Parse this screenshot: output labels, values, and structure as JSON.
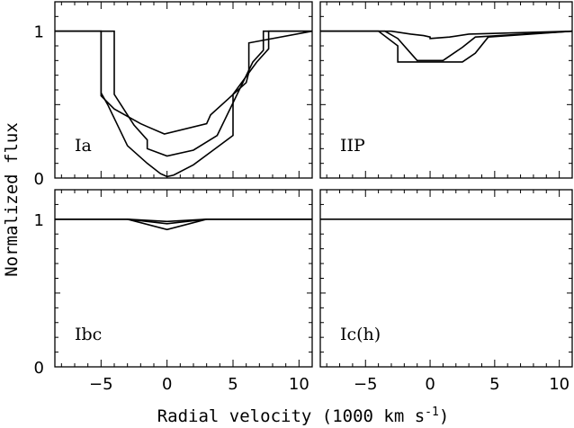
{
  "chart_data": {
    "type": "line",
    "xlabel": "Radial velocity (1000 km s",
    "xlabel_sup": "-1",
    "xlabel_close": ")",
    "ylabel": "Normalized flux",
    "xlim": [
      -8.5,
      11
    ],
    "ylim": [
      0,
      1.2
    ],
    "xticks": [
      -5,
      0,
      5,
      10
    ],
    "yticks": [
      0,
      1
    ],
    "panels": [
      {
        "label": "Ia",
        "series": [
          {
            "x": [
              -8.5,
              -5.0,
              -5.0,
              -4.0,
              -2.0,
              -1.5,
              -1.5,
              -0.2,
              -0.2,
              3.0,
              3.3,
              3.3,
              6.0,
              6.2,
              6.2,
              11
            ],
            "y": [
              1,
              1,
              0.56,
              0.47,
              0.37,
              0.35,
              0.35,
              0.3,
              0.3,
              0.37,
              0.43,
              0.43,
              0.65,
              0.72,
              0.92,
              1
            ]
          },
          {
            "x": [
              -8.5,
              -4.0,
              -4.0,
              -3.5,
              -2.5,
              -1.5,
              -1.5,
              0,
              2.0,
              3.8,
              3.8,
              6.5,
              7.3,
              7.3,
              11
            ],
            "y": [
              1,
              1,
              0.57,
              0.5,
              0.36,
              0.26,
              0.2,
              0.15,
              0.19,
              0.29,
              0.29,
              0.79,
              0.87,
              1.0,
              1
            ]
          },
          {
            "x": [
              -8.5,
              -5.0,
              -5.0,
              -4.5,
              -3.0,
              -1.5,
              -0.5,
              0,
              0.5,
              2.0,
              3.5,
              5.0,
              5.0,
              6.8,
              7.7,
              7.7,
              11
            ],
            "y": [
              1,
              1,
              0.58,
              0.5,
              0.22,
              0.1,
              0.03,
              0.01,
              0.02,
              0.09,
              0.19,
              0.29,
              0.57,
              0.79,
              0.88,
              1.0,
              1
            ]
          }
        ]
      },
      {
        "label": "IIP",
        "series": [
          {
            "x": [
              -8.5,
              -3.0,
              -1.5,
              -0.5,
              0,
              0,
              1.5,
              3.0,
              11
            ],
            "y": [
              1,
              1,
              0.98,
              0.97,
              0.96,
              0.95,
              0.96,
              0.98,
              1
            ]
          },
          {
            "x": [
              -8.5,
              -3.5,
              -2.5,
              -1.5,
              -1.0,
              1.0,
              2.5,
              3.5,
              11
            ],
            "y": [
              1,
              1,
              0.95,
              0.85,
              0.8,
              0.8,
              0.89,
              0.96,
              1
            ]
          },
          {
            "x": [
              -8.5,
              -4.0,
              -2.5,
              -2.5,
              2.5,
              3.5,
              4.5,
              11
            ],
            "y": [
              1,
              1,
              0.9,
              0.79,
              0.79,
              0.85,
              0.96,
              1
            ]
          }
        ]
      },
      {
        "label": "Ibc",
        "series": [
          {
            "x": [
              -8.5,
              -3.0,
              0,
              3.0,
              11
            ],
            "y": [
              1,
              1,
              0.93,
              1,
              1
            ]
          },
          {
            "x": [
              -8.5,
              -3.0,
              0,
              3.0,
              11
            ],
            "y": [
              1,
              1,
              0.97,
              1,
              1
            ]
          },
          {
            "x": [
              -8.5,
              -3.0,
              0,
              3.0,
              11
            ],
            "y": [
              1,
              1,
              0.985,
              1,
              1
            ]
          }
        ]
      },
      {
        "label": "Ic(h)",
        "series": [
          {
            "x": [
              -8.5,
              11
            ],
            "y": [
              1,
              1
            ]
          }
        ]
      }
    ]
  }
}
